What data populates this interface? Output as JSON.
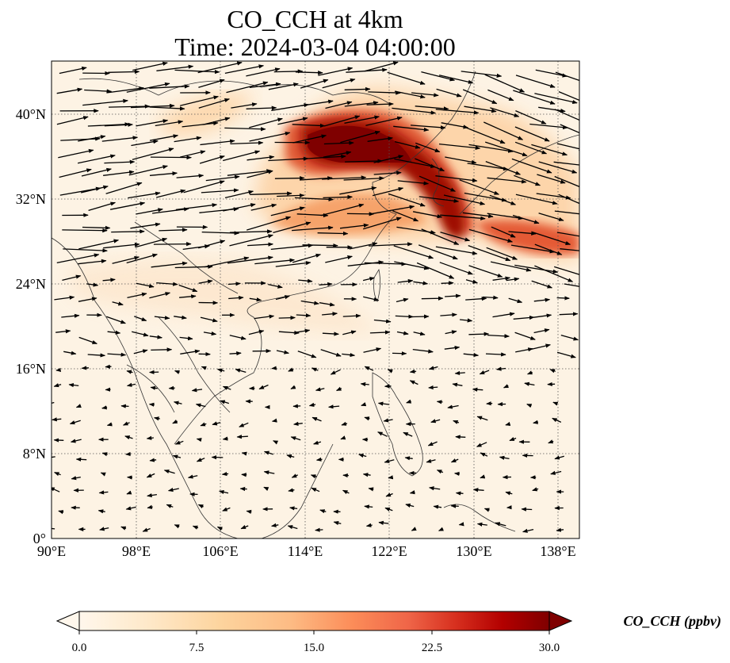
{
  "title": {
    "line1": "CO_CCH at 4km",
    "line2": "Time: 2024-03-04 04:00:00"
  },
  "map": {
    "lon_ticks": [
      "90°E",
      "98°E",
      "106°E",
      "114°E",
      "122°E",
      "130°E",
      "138°E"
    ],
    "lat_ticks": [
      "40°N",
      "32°N",
      "24°N",
      "16°N",
      "8°N",
      "0°"
    ],
    "lon_range": [
      90,
      140
    ],
    "lat_range": [
      0,
      45
    ],
    "gridlines": "dotted",
    "field": "CO_CCH",
    "overlay": "wind vectors"
  },
  "colorbar": {
    "label": "CO_CCH (ppbv)",
    "ticks": [
      "0.0",
      "7.5",
      "15.0",
      "22.5",
      "30.0"
    ],
    "min": 0,
    "max": 30,
    "colormap": [
      "#fff7ec",
      "#fee8c8",
      "#fdd49e",
      "#fdbb84",
      "#fc8d59",
      "#ef6548",
      "#d7301f",
      "#b30000",
      "#7f0000"
    ],
    "extend": "both"
  }
}
